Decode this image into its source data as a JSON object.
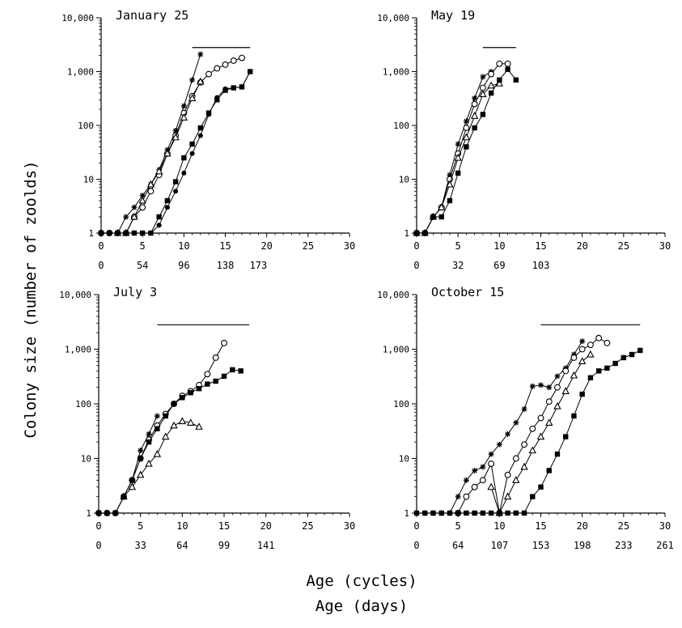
{
  "figure": {
    "ylabel": "Colony size (number of zoolds)",
    "xlabel_1": "Age (cycles)",
    "xlabel_2": "Age (days)"
  },
  "chart_data": [
    {
      "type": "line",
      "title": "January 25",
      "y_scale": "log",
      "ylim": [
        1,
        10000
      ],
      "y_ticks": [
        "1",
        "10",
        "100",
        "1,000",
        "10,000"
      ],
      "xlim": [
        0,
        30
      ],
      "x_ticks": [
        "0",
        "5",
        "10",
        "15",
        "20",
        "25",
        "30"
      ],
      "days_ticks": [
        "0",
        "54",
        "96",
        "138",
        "173"
      ],
      "days_tick_cycles": [
        0,
        5,
        10,
        15,
        19
      ],
      "bar": [
        11,
        18
      ],
      "series": [
        {
          "marker": "star",
          "x": [
            0,
            1,
            2,
            3,
            4,
            5,
            6,
            7,
            8,
            9,
            10,
            11,
            12
          ],
          "y": [
            1,
            1,
            1,
            2,
            3,
            5,
            8,
            15,
            35,
            80,
            230,
            700,
            2100
          ]
        },
        {
          "marker": "open-circle",
          "x": [
            0,
            1,
            2,
            3,
            4,
            5,
            6,
            7,
            8,
            9,
            10,
            11,
            12,
            13,
            14,
            15,
            16,
            17
          ],
          "y": [
            1,
            1,
            1,
            1,
            2,
            3,
            6,
            12,
            30,
            65,
            170,
            350,
            630,
            900,
            1150,
            1350,
            1600,
            1800
          ]
        },
        {
          "marker": "open-triangle",
          "x": [
            2,
            3,
            4,
            5,
            6,
            7,
            8,
            9,
            10,
            11,
            12
          ],
          "y": [
            1,
            1,
            2,
            4,
            8,
            14,
            30,
            60,
            140,
            320,
            650
          ]
        },
        {
          "marker": "filled-circle",
          "x": [
            0,
            1,
            2,
            3,
            4,
            5,
            6,
            7,
            8,
            9,
            10,
            11,
            12,
            13,
            14,
            15,
            16,
            17,
            18
          ],
          "y": [
            1,
            1,
            1,
            1,
            1,
            1,
            1,
            1.4,
            3,
            6,
            13,
            30,
            65,
            160,
            330,
            480,
            500,
            520,
            1000
          ]
        },
        {
          "marker": "filled-square",
          "x": [
            0,
            1,
            2,
            3,
            4,
            5,
            6,
            7,
            8,
            9,
            10,
            11,
            12,
            13,
            14,
            15,
            16,
            17,
            18
          ],
          "y": [
            1,
            1,
            1,
            1,
            1,
            1,
            1,
            2,
            4,
            9,
            25,
            45,
            90,
            170,
            300,
            450,
            500,
            520,
            1000
          ]
        }
      ]
    },
    {
      "type": "line",
      "title": "May 19",
      "y_scale": "log",
      "ylim": [
        1,
        10000
      ],
      "y_ticks": [
        "1",
        "10",
        "100",
        "1,000",
        "10,000"
      ],
      "xlim": [
        0,
        30
      ],
      "x_ticks": [
        "0",
        "5",
        "10",
        "15",
        "20",
        "25",
        "30"
      ],
      "days_ticks": [
        "0",
        "32",
        "69",
        "103"
      ],
      "days_tick_cycles": [
        0,
        5,
        10,
        15
      ],
      "bar": [
        8,
        12
      ],
      "series": [
        {
          "marker": "star",
          "x": [
            0,
            1,
            2,
            3,
            4,
            5,
            6,
            7,
            8,
            9
          ],
          "y": [
            1,
            1,
            2,
            3,
            12,
            45,
            120,
            320,
            800,
            1000
          ]
        },
        {
          "marker": "open-circle",
          "x": [
            0,
            1,
            2,
            3,
            4,
            5,
            6,
            7,
            8,
            9,
            10,
            11
          ],
          "y": [
            1,
            1,
            2,
            3,
            10,
            30,
            90,
            250,
            500,
            900,
            1400,
            1400
          ]
        },
        {
          "marker": "open-triangle",
          "x": [
            0,
            1,
            2,
            3,
            4,
            5,
            6,
            7,
            8,
            9,
            10
          ],
          "y": [
            1,
            1,
            2,
            3,
            8,
            25,
            60,
            150,
            380,
            550,
            600
          ]
        },
        {
          "marker": "filled-square",
          "x": [
            0,
            1,
            2,
            3,
            4,
            5,
            6,
            7,
            8,
            9,
            10,
            11,
            12
          ],
          "y": [
            1,
            1,
            2,
            2,
            4,
            13,
            40,
            90,
            160,
            400,
            700,
            1100,
            700
          ]
        }
      ]
    },
    {
      "type": "line",
      "title": "July 3",
      "y_scale": "log",
      "ylim": [
        1,
        10000
      ],
      "y_ticks": [
        "1",
        "10",
        "100",
        "1,000",
        "10,000"
      ],
      "xlim": [
        0,
        30
      ],
      "x_ticks": [
        "0",
        "5",
        "10",
        "15",
        "20",
        "25",
        "30"
      ],
      "days_ticks": [
        "0",
        "33",
        "64",
        "99",
        "141"
      ],
      "days_tick_cycles": [
        0,
        5,
        10,
        15,
        20
      ],
      "bar": [
        7,
        18
      ],
      "series": [
        {
          "marker": "star",
          "x": [
            0,
            1,
            2,
            3,
            4,
            5,
            6,
            7
          ],
          "y": [
            1,
            1,
            1,
            2,
            4,
            14,
            28,
            60
          ]
        },
        {
          "marker": "open-circle",
          "x": [
            0,
            1,
            2,
            3,
            4,
            5,
            6,
            7,
            8,
            9,
            10,
            11,
            12,
            13,
            14,
            15
          ],
          "y": [
            1,
            1,
            1,
            2,
            4,
            10,
            22,
            40,
            65,
            100,
            140,
            170,
            220,
            350,
            700,
            1300
          ]
        },
        {
          "marker": "open-triangle",
          "x": [
            3,
            4,
            5,
            6,
            7,
            8,
            9,
            10,
            11,
            12
          ],
          "y": [
            2,
            3,
            5,
            8,
            12,
            25,
            40,
            48,
            45,
            38
          ]
        },
        {
          "marker": "filled-square",
          "x": [
            0,
            1,
            2,
            3,
            4,
            5,
            6,
            7,
            8,
            9,
            10,
            11,
            12,
            13,
            14,
            15,
            16,
            17
          ],
          "y": [
            1,
            1,
            1,
            2,
            4,
            10,
            20,
            35,
            60,
            100,
            130,
            160,
            190,
            230,
            260,
            320,
            420,
            400
          ]
        }
      ]
    },
    {
      "type": "line",
      "title": "October 15",
      "y_scale": "log",
      "ylim": [
        1,
        10000
      ],
      "y_ticks": [
        "1",
        "10",
        "100",
        "1,000",
        "10,000"
      ],
      "xlim": [
        0,
        30
      ],
      "x_ticks": [
        "0",
        "5",
        "10",
        "15",
        "20",
        "25",
        "30"
      ],
      "days_ticks": [
        "0",
        "64",
        "107",
        "153",
        "198",
        "233",
        "261"
      ],
      "days_tick_cycles": [
        0,
        5,
        10,
        15,
        20,
        25,
        30
      ],
      "bar": [
        15,
        27
      ],
      "series": [
        {
          "marker": "star",
          "x": [
            0,
            1,
            2,
            3,
            4,
            5,
            6,
            7,
            8,
            9,
            10,
            11,
            12,
            13,
            14,
            15,
            16,
            17,
            18,
            19,
            20
          ],
          "y": [
            1,
            1,
            1,
            1,
            1,
            2,
            4,
            6,
            7,
            12,
            18,
            28,
            45,
            80,
            210,
            220,
            200,
            320,
            450,
            800,
            1400
          ]
        },
        {
          "marker": "open-circle",
          "x": [
            5,
            6,
            7,
            8,
            9,
            10,
            11,
            12,
            13,
            14,
            15,
            16,
            17,
            18,
            19,
            20,
            21,
            22,
            23
          ],
          "y": [
            1,
            2,
            3,
            4,
            8,
            1,
            5,
            10,
            18,
            35,
            55,
            110,
            200,
            400,
            700,
            1000,
            1200,
            1600,
            1300
          ]
        },
        {
          "marker": "open-triangle",
          "x": [
            9,
            10,
            11,
            12,
            13,
            14,
            15,
            16,
            17,
            18,
            19,
            20,
            21
          ],
          "y": [
            3,
            1,
            2,
            4,
            7,
            14,
            25,
            45,
            90,
            170,
            330,
            600,
            800
          ]
        },
        {
          "marker": "filled-square",
          "x": [
            0,
            1,
            2,
            3,
            4,
            5,
            6,
            7,
            8,
            9,
            10,
            11,
            12,
            13,
            14,
            15,
            16,
            17,
            18,
            19,
            20,
            21,
            22,
            23,
            24,
            25,
            26,
            27
          ],
          "y": [
            1,
            1,
            1,
            1,
            1,
            1,
            1,
            1,
            1,
            1,
            1,
            1,
            1,
            1,
            2,
            3,
            6,
            12,
            25,
            60,
            150,
            300,
            400,
            450,
            550,
            700,
            800,
            950
          ]
        }
      ]
    }
  ]
}
